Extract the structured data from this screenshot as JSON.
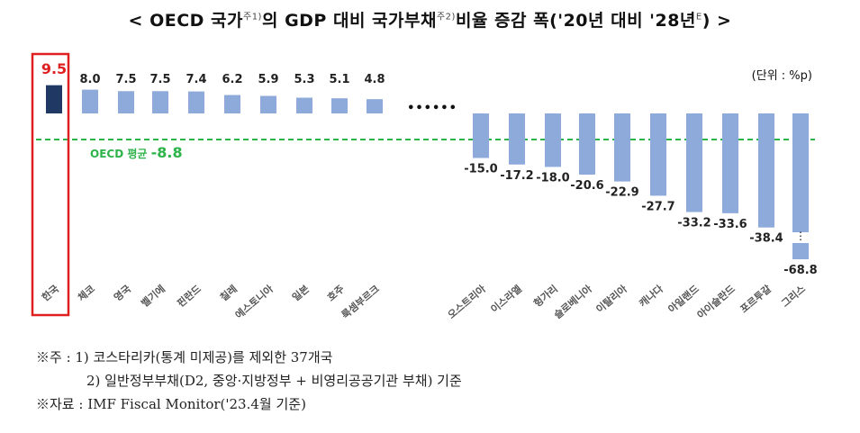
{
  "title": {
    "prefix": "< OECD 국가",
    "sup1": "주1)",
    "mid": "의 GDP 대비 국가부채",
    "sup2": "주2)",
    "suffix": "비율 증감 폭('20년 대비 '28년",
    "sup3": "E",
    "end": ") >"
  },
  "unit_label": "(단위 : %p)",
  "ellipsis": "••••••",
  "avg_label": "OECD 평균",
  "notes": {
    "line1": "※주 : 1) 코스타리카(통계 미제공)를 제외한 37개국",
    "line2": "2) 일반정부부채(D2, 중앙·지방정부 + 비영리공공기관 부채) 기준",
    "line3": "※자료 : IMF Fiscal Monitor('23.4월 기준)"
  },
  "colors": {
    "highlight_bar": "#1f3864",
    "bar": "#8eaadb",
    "highlight_label": "#e02020",
    "avg_line": "#2db34a",
    "box": "#e02020"
  },
  "chart_data": {
    "type": "bar",
    "categories": [
      "한국",
      "체코",
      "영국",
      "벨기에",
      "핀란드",
      "칠레",
      "에스토니아",
      "일본",
      "호주",
      "룩셈부르크",
      "오스트리아",
      "이스라엘",
      "헝가리",
      "슬로베니아",
      "이탈리아",
      "캐나다",
      "아일랜드",
      "아이슬란드",
      "포르투갈",
      "그리스"
    ],
    "values": [
      9.5,
      8.0,
      7.5,
      7.5,
      7.4,
      6.2,
      5.9,
      5.3,
      5.1,
      4.8,
      -15.0,
      -17.2,
      -18.0,
      -20.6,
      -22.9,
      -27.7,
      -33.2,
      -33.6,
      -38.4,
      -68.8
    ],
    "value_labels": [
      "9.5",
      "8.0",
      "7.5",
      "7.5",
      "7.4",
      "6.2",
      "5.9",
      "5.3",
      "5.1",
      "4.8",
      "-15.0",
      "-17.2",
      "-18.0",
      "-20.6",
      "-22.9",
      "-27.7",
      "-33.2",
      "-33.6",
      "-38.4",
      "-68.8"
    ],
    "highlight": "한국",
    "reference_line": {
      "value": -8.8,
      "label": "-8.8"
    },
    "axis_break": "그리스",
    "ylabel": "",
    "xlabel": ""
  }
}
